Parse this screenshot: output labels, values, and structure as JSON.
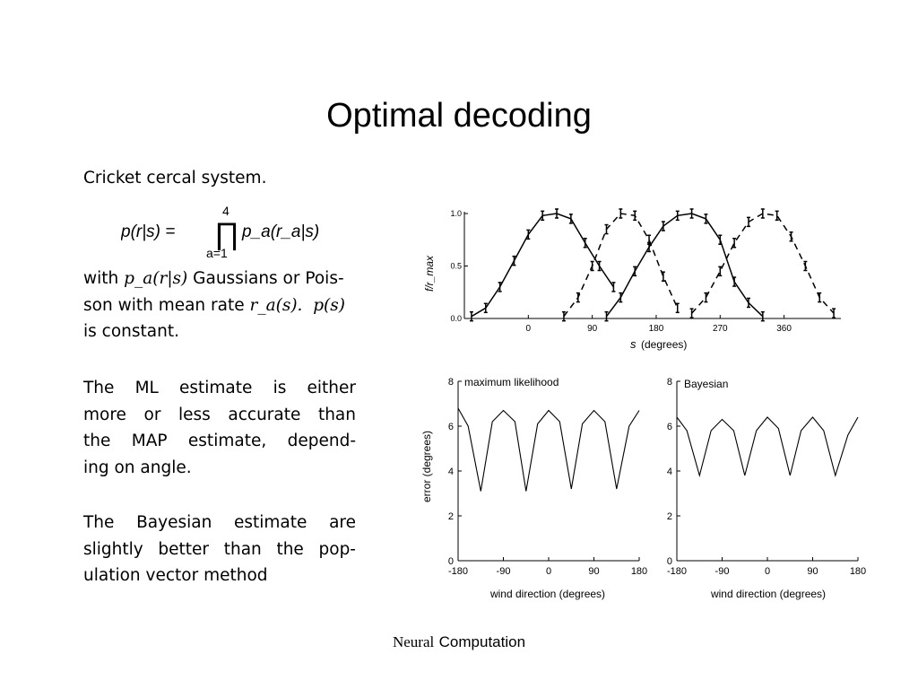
{
  "slide": {
    "title": "Optimal decoding",
    "intro": "Cricket cercal system.",
    "formula": {
      "lhs": "p(r|s) =",
      "prod_upper": "4",
      "prod_lower": "a=1",
      "rhs": "p_a(r_a|s)"
    },
    "with_text": {
      "line1_pre": "with ",
      "line1_math": "p_a(r|s)",
      "line1_post": " Gaussians or Pois-",
      "line2_pre": "son with mean rate ",
      "line2_math": "r_a(s).",
      "line2_math2": "p(s)",
      "line3": "is constant."
    },
    "para2": [
      "The ML estimate is either",
      "more or less accurate than",
      "the MAP estimate, depend-",
      "ing on angle."
    ],
    "para3": [
      "The Bayesian estimate are",
      "slightly better than the pop-",
      "ulation vector method"
    ],
    "footer": {
      "serif": "Neural",
      "sans": "Computation"
    }
  },
  "chart_data": [
    {
      "type": "line",
      "ylabel": "f/r_max",
      "xlabel_var": "s",
      "xlabel_unit": "(degrees)",
      "xticks": [
        0,
        90,
        180,
        270,
        360
      ],
      "yticks": [
        "0.0",
        "0.5",
        "1.0"
      ],
      "xlim": [
        -90,
        440
      ],
      "ylim": [
        0,
        1.0
      ],
      "series": [
        {
          "style": "solid",
          "x": [
            -80,
            -60,
            -40,
            -20,
            0,
            20,
            40,
            60,
            80,
            100,
            120
          ],
          "y": [
            0.02,
            0.1,
            0.3,
            0.55,
            0.8,
            0.98,
            1.0,
            0.95,
            0.72,
            0.5,
            0.3
          ]
        },
        {
          "style": "dashed",
          "x": [
            50,
            70,
            90,
            110,
            130,
            150,
            170,
            190,
            210
          ],
          "y": [
            0.02,
            0.2,
            0.5,
            0.85,
            1.0,
            0.98,
            0.75,
            0.4,
            0.1
          ]
        },
        {
          "style": "solid",
          "x": [
            110,
            130,
            150,
            170,
            190,
            210,
            230,
            250,
            270,
            290,
            310,
            330
          ],
          "y": [
            0.02,
            0.2,
            0.45,
            0.68,
            0.88,
            0.98,
            1.0,
            0.95,
            0.75,
            0.35,
            0.15,
            0.02
          ]
        },
        {
          "style": "dashed",
          "x": [
            230,
            250,
            270,
            290,
            310,
            330,
            350,
            370,
            390,
            410,
            430
          ],
          "y": [
            0.05,
            0.2,
            0.45,
            0.72,
            0.92,
            1.0,
            0.98,
            0.78,
            0.5,
            0.2,
            0.05
          ]
        }
      ]
    },
    {
      "type": "line",
      "title": "maximum likelihood",
      "xlabel": "wind direction (degrees)",
      "ylabel": "error (degrees)",
      "xticks": [
        "-180",
        "-90",
        "0",
        "90",
        "180"
      ],
      "yticks": [
        "0",
        "2",
        "4",
        "6",
        "8"
      ],
      "xlim": [
        -180,
        180
      ],
      "ylim": [
        0,
        8
      ],
      "series": [
        {
          "name": "",
          "x": [
            -180,
            -160,
            -135,
            -112,
            -90,
            -67,
            -45,
            -22,
            0,
            22,
            45,
            67,
            90,
            112,
            135,
            160,
            180
          ],
          "y": [
            6.8,
            6.0,
            3.1,
            6.2,
            6.7,
            6.2,
            3.1,
            6.1,
            6.7,
            6.2,
            3.2,
            6.1,
            6.7,
            6.2,
            3.2,
            6.0,
            6.7
          ]
        }
      ]
    },
    {
      "type": "line",
      "title": "Bayesian",
      "xlabel": "wind direction (degrees)",
      "ylabel": "",
      "xticks": [
        "-180",
        "-90",
        "0",
        "90",
        "180"
      ],
      "yticks": [
        "0",
        "2",
        "4",
        "6",
        "8"
      ],
      "xlim": [
        -180,
        180
      ],
      "ylim": [
        0,
        8
      ],
      "series": [
        {
          "name": "",
          "x": [
            -180,
            -160,
            -135,
            -112,
            -90,
            -67,
            -45,
            -22,
            0,
            22,
            45,
            67,
            90,
            112,
            135,
            160,
            180
          ],
          "y": [
            6.4,
            5.8,
            3.8,
            5.8,
            6.3,
            5.8,
            3.8,
            5.8,
            6.4,
            5.9,
            3.8,
            5.8,
            6.4,
            5.8,
            3.8,
            5.6,
            6.4
          ]
        }
      ]
    }
  ]
}
